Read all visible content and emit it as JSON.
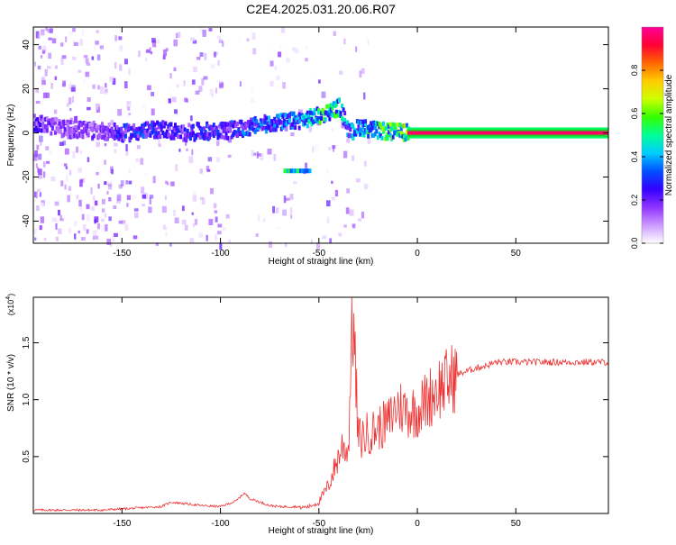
{
  "title": "C2E4.2025.031.20.06.R07",
  "colors": {
    "colorbar": [
      "#ffffff",
      "#cc99ff",
      "#8f33ff",
      "#3300ff",
      "#0050ff",
      "#00ccff",
      "#00ff99",
      "#33ff00",
      "#ccff00",
      "#ffcc00",
      "#ff6600",
      "#ff0033",
      "#ff0099"
    ],
    "snr_line": "#ee3333",
    "frame": "#000000"
  },
  "chart_data": [
    {
      "type": "heatmap",
      "title": "C2E4.2025.031.20.06.R07",
      "xlabel": "Height of straight line (km)",
      "ylabel": "Frequency (Hz)",
      "xlim": [
        -195,
        97
      ],
      "ylim": [
        -50,
        48
      ],
      "x_ticks": [
        -150,
        -100,
        -50,
        0,
        50
      ],
      "y_ticks": [
        -40,
        -20,
        0,
        20,
        40
      ],
      "colorbar": {
        "label": "Normalized spectral amplitude",
        "range": [
          0,
          1
        ],
        "ticks": [
          0.0,
          0.2,
          0.4,
          0.6,
          0.8
        ]
      },
      "ridge": {
        "x": [
          -195,
          -180,
          -160,
          -150,
          -140,
          -130,
          -120,
          -110,
          -100,
          -90,
          -80,
          -70,
          -60,
          -50,
          -45,
          -40,
          -35,
          -30,
          -25,
          -20,
          -10,
          0,
          5,
          10,
          20,
          40,
          60,
          80,
          97
        ],
        "frequency": [
          5,
          2,
          1,
          0,
          1,
          2,
          0,
          1,
          1,
          2,
          4,
          5,
          6,
          8,
          10,
          12,
          0,
          3,
          2,
          1,
          0.5,
          0,
          -1,
          0,
          0,
          0,
          0,
          0,
          0
        ],
        "amplitude": [
          0.25,
          0.2,
          0.2,
          0.3,
          0.35,
          0.3,
          0.28,
          0.3,
          0.3,
          0.35,
          0.38,
          0.4,
          0.4,
          0.55,
          0.6,
          0.55,
          0.4,
          0.45,
          0.55,
          0.6,
          0.7,
          0.8,
          0.75,
          0.85,
          0.9,
          0.9,
          0.9,
          0.9,
          0.9
        ]
      }
    },
    {
      "type": "line",
      "xlabel": "Height of straight line (km)",
      "ylabel": "SNR (10 * v/v)",
      "y_multiplier": "(x10^4)",
      "xlim": [
        -195,
        97
      ],
      "ylim": [
        0,
        1.9
      ],
      "x_ticks": [
        -150,
        -100,
        -50,
        0,
        50
      ],
      "y_ticks": [
        0.5,
        1.0,
        1.5
      ],
      "series": [
        {
          "x": [
            -195,
            -180,
            -160,
            -140,
            -130,
            -125,
            -110,
            -100,
            -92,
            -88,
            -85,
            -80,
            -75,
            -70,
            -60,
            -55,
            -50,
            -45,
            -40,
            -38,
            -35,
            -33,
            -30,
            -25,
            -20,
            -15,
            -10,
            -5,
            0,
            5,
            10,
            15,
            20,
            25,
            30,
            35,
            40,
            50,
            60,
            70,
            80,
            90,
            97
          ],
          "values": [
            0.02,
            0.02,
            0.02,
            0.04,
            0.05,
            0.09,
            0.06,
            0.05,
            0.1,
            0.17,
            0.12,
            0.09,
            0.06,
            0.05,
            0.05,
            0.06,
            0.1,
            0.25,
            0.5,
            0.6,
            0.55,
            1.85,
            0.65,
            0.7,
            0.75,
            0.8,
            0.95,
            0.9,
            0.9,
            1.0,
            1.1,
            1.15,
            1.22,
            1.25,
            1.28,
            1.3,
            1.33,
            1.33,
            1.33,
            1.33,
            1.33,
            1.33,
            1.33
          ]
        }
      ]
    }
  ]
}
